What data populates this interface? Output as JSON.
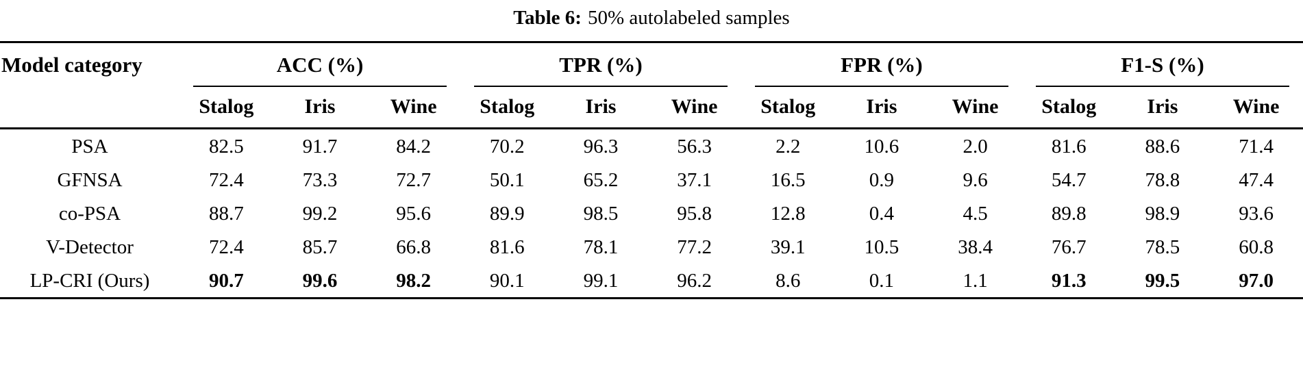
{
  "caption": {
    "label": "Table 6:",
    "text": "50% autolabeled samples"
  },
  "table": {
    "row_header": "Model category",
    "groups": [
      {
        "label": "ACC (%)"
      },
      {
        "label": "TPR (%)"
      },
      {
        "label": "FPR (%)"
      },
      {
        "label": "F1-S (%)"
      }
    ],
    "subcolumns": [
      "Stalog",
      "Iris",
      "Wine"
    ],
    "rows": [
      {
        "model": "PSA",
        "values": [
          "82.5",
          "91.7",
          "84.2",
          "70.2",
          "96.3",
          "56.3",
          "2.2",
          "10.6",
          "2.0",
          "81.6",
          "88.6",
          "71.4"
        ],
        "bold": []
      },
      {
        "model": "GFNSA",
        "values": [
          "72.4",
          "73.3",
          "72.7",
          "50.1",
          "65.2",
          "37.1",
          "16.5",
          "0.9",
          "9.6",
          "54.7",
          "78.8",
          "47.4"
        ],
        "bold": []
      },
      {
        "model": "co-PSA",
        "values": [
          "88.7",
          "99.2",
          "95.6",
          "89.9",
          "98.5",
          "95.8",
          "12.8",
          "0.4",
          "4.5",
          "89.8",
          "98.9",
          "93.6"
        ],
        "bold": []
      },
      {
        "model": "V-Detector",
        "values": [
          "72.4",
          "85.7",
          "66.8",
          "81.6",
          "78.1",
          "77.2",
          "39.1",
          "10.5",
          "38.4",
          "76.7",
          "78.5",
          "60.8"
        ],
        "bold": []
      },
      {
        "model": "LP-CRI (Ours)",
        "values": [
          "90.7",
          "99.6",
          "98.2",
          "90.1",
          "99.1",
          "96.2",
          "8.6",
          "0.1",
          "1.1",
          "91.3",
          "99.5",
          "97.0"
        ],
        "bold": [
          0,
          1,
          2,
          9,
          10,
          11
        ]
      }
    ]
  }
}
